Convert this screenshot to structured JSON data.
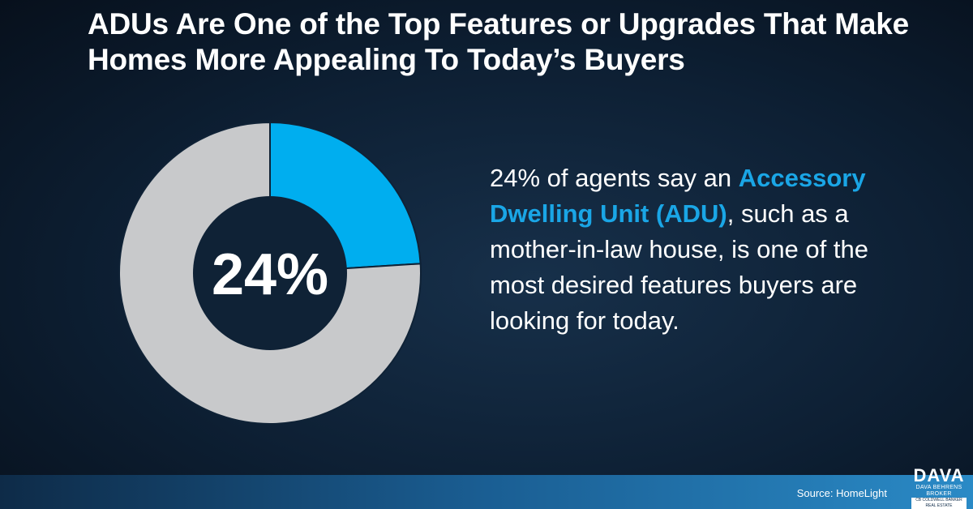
{
  "title": "ADUs Are One of the Top Features or Upgrades That Make Homes More Appealing To Today’s Buyers",
  "chart_data": {
    "type": "pie",
    "style": "donut",
    "center_label": "24%",
    "slices": [
      {
        "value": 24,
        "color": "#00aeef"
      },
      {
        "value": 76,
        "color": "#c8c9cb"
      }
    ]
  },
  "description": {
    "part1": "24% of agents say an ",
    "highlight": "Accessory Dwelling Unit (ADU)",
    "part2": ", such as a mother-in-law house, is one of the most desired features buyers are looking for today."
  },
  "footer": {
    "source": "Source: HomeLight"
  },
  "logo": {
    "wordmark": "DAVA",
    "name": "DAVA BEHRENS",
    "role": "BROKER",
    "company": "CB  COLDWELL BANKER REAL ESTATE"
  },
  "colors": {
    "accent": "#00aeef",
    "remainder": "#c8c9cb",
    "highlight_text": "#1aa6e6",
    "background": "#0d1f33"
  }
}
